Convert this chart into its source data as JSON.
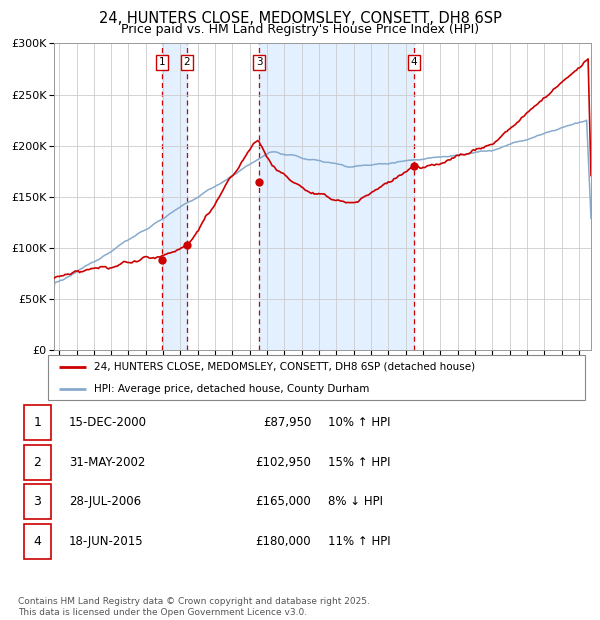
{
  "title": "24, HUNTERS CLOSE, MEDOMSLEY, CONSETT, DH8 6SP",
  "subtitle": "Price paid vs. HM Land Registry's House Price Index (HPI)",
  "legend_line1": "24, HUNTERS CLOSE, MEDOMSLEY, CONSETT, DH8 6SP (detached house)",
  "legend_line2": "HPI: Average price, detached house, County Durham",
  "footer": "Contains HM Land Registry data © Crown copyright and database right 2025.\nThis data is licensed under the Open Government Licence v3.0.",
  "transactions": [
    {
      "num": 1,
      "date": "15-DEC-2000",
      "price": "£87,950",
      "change": "10% ↑ HPI",
      "y_val": 87950
    },
    {
      "num": 2,
      "date": "31-MAY-2002",
      "price": "£102,950",
      "change": "15% ↑ HPI",
      "y_val": 102950
    },
    {
      "num": 3,
      "date": "28-JUL-2006",
      "price": "£165,000",
      "change": "8% ↓ HPI",
      "y_val": 165000
    },
    {
      "num": 4,
      "date": "18-JUN-2015",
      "price": "£180,000",
      "change": "11% ↑ HPI",
      "y_val": 180000
    }
  ],
  "color_red": "#cc0000",
  "color_blue": "#88aacc",
  "color_bg_shaded": "#ddeeff",
  "color_grid": "#cccccc",
  "ylim": [
    0,
    300000
  ],
  "xlim_start": 1994.7,
  "xlim_end": 2025.7
}
